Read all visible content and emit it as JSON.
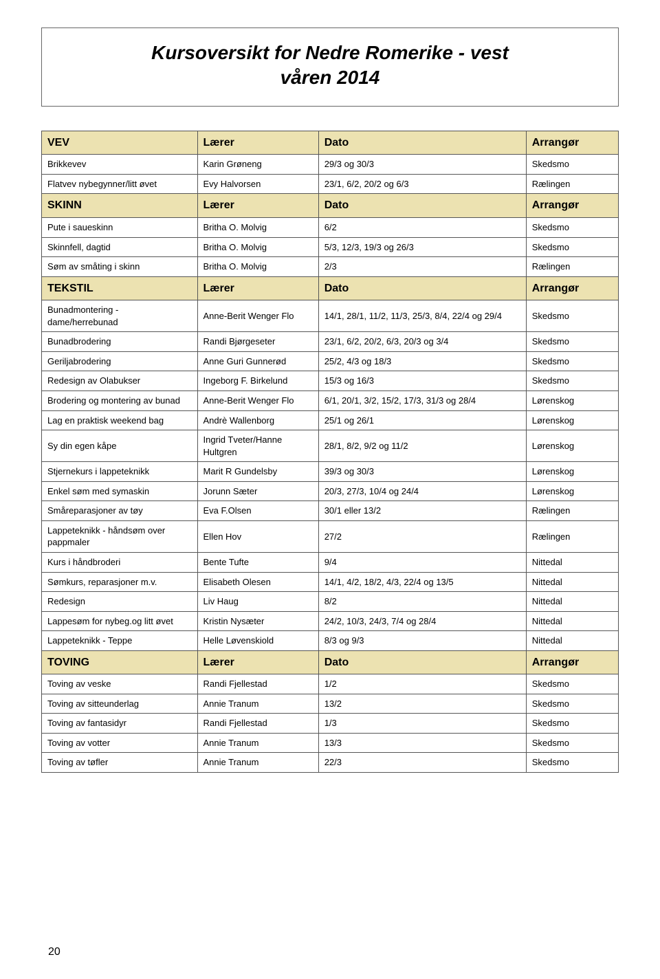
{
  "title_line1": "Kursoversikt for Nedre Romerike - vest",
  "title_line2": "våren 2014",
  "page_number": "20",
  "columns": [
    "Lærer",
    "Dato",
    "Arrangør"
  ],
  "sections": [
    {
      "name": "VEV",
      "rows": [
        [
          "Brikkevev",
          "Karin Grøneng",
          "29/3 og 30/3",
          "Skedsmo"
        ],
        [
          "Flatvev nybegynner/litt øvet",
          "Evy Halvorsen",
          "23/1, 6/2, 20/2 og 6/3",
          "Rælingen"
        ]
      ]
    },
    {
      "name": "SKINN",
      "rows": [
        [
          "Pute i saueskinn",
          "Britha O. Molvig",
          "6/2",
          "Skedsmo"
        ],
        [
          "Skinnfell, dagtid",
          "Britha O. Molvig",
          "5/3, 12/3, 19/3 og 26/3",
          "Skedsmo"
        ],
        [
          "Søm av småting i skinn",
          "Britha O. Molvig",
          "2/3",
          "Rælingen"
        ]
      ]
    },
    {
      "name": "TEKSTIL",
      "rows": [
        [
          "Bunadmontering - dame/herrebunad",
          "Anne-Berit Wenger Flo",
          "14/1, 28/1, 11/2, 11/3, 25/3, 8/4, 22/4 og 29/4",
          "Skedsmo"
        ],
        [
          "Bunadbrodering",
          "Randi Bjørgeseter",
          "23/1, 6/2, 20/2, 6/3, 20/3 og 3/4",
          "Skedsmo"
        ],
        [
          "Geriljabrodering",
          "Anne Guri Gunnerød",
          "25/2, 4/3 og 18/3",
          "Skedsmo"
        ],
        [
          "Redesign av Olabukser",
          "Ingeborg F. Birkelund",
          "15/3 og 16/3",
          "Skedsmo"
        ],
        [
          "Brodering og montering av bunad",
          "Anne-Berit Wenger Flo",
          "6/1, 20/1, 3/2, 15/2, 17/3, 31/3 og 28/4",
          "Lørenskog"
        ],
        [
          "Lag en praktisk weekend bag",
          "Andrè Wallenborg",
          "25/1 og 26/1",
          "Lørenskog"
        ],
        [
          "Sy din egen kåpe",
          "Ingrid Tveter/Hanne Hultgren",
          "28/1, 8/2, 9/2 og 11/2",
          "Lørenskog"
        ],
        [
          "Stjernekurs i lappeteknikk",
          "Marit R Gundelsby",
          "39/3 og 30/3",
          "Lørenskog"
        ],
        [
          "Enkel søm med symaskin",
          "Jorunn Sæter",
          "20/3, 27/3, 10/4 og 24/4",
          "Lørenskog"
        ],
        [
          "Småreparasjoner av tøy",
          "Eva F.Olsen",
          "30/1 eller 13/2",
          "Rælingen"
        ],
        [
          "Lappeteknikk - håndsøm over pappmaler",
          "Ellen Hov",
          "27/2",
          "Rælingen"
        ],
        [
          "Kurs i håndbroderi",
          "Bente Tufte",
          "9/4",
          "Nittedal"
        ],
        [
          "Sømkurs, reparasjoner m.v.",
          "Elisabeth Olesen",
          "14/1, 4/2, 18/2, 4/3, 22/4 og 13/5",
          "Nittedal"
        ],
        [
          "Redesign",
          "Liv Haug",
          "8/2",
          "Nittedal"
        ],
        [
          "Lappesøm for nybeg.og litt øvet",
          "Kristin Nysæter",
          "24/2, 10/3, 24/3, 7/4 og 28/4",
          "Nittedal"
        ],
        [
          "Lappeteknikk - Teppe",
          "Helle Løvenskiold",
          "8/3 og 9/3",
          "Nittedal"
        ]
      ]
    },
    {
      "name": "TOVING",
      "rows": [
        [
          "Toving av veske",
          "Randi Fjellestad",
          "1/2",
          "Skedsmo"
        ],
        [
          "Toving av sitteunderlag",
          "Annie Tranum",
          "13/2",
          "Skedsmo"
        ],
        [
          "Toving av fantasidyr",
          "Randi Fjellestad",
          "1/3",
          "Skedsmo"
        ],
        [
          "Toving av votter",
          "Annie Tranum",
          "13/3",
          "Skedsmo"
        ],
        [
          "Toving av tøfler",
          "Annie Tranum",
          "22/3",
          "Skedsmo"
        ]
      ]
    }
  ],
  "styling": {
    "header_bg": "#ece2b1",
    "border_color": "#555555",
    "page_bg": "#ffffff",
    "font_body": "Arial",
    "fontsize_body": 13,
    "fontsize_header": 16,
    "fontsize_title": 28
  }
}
